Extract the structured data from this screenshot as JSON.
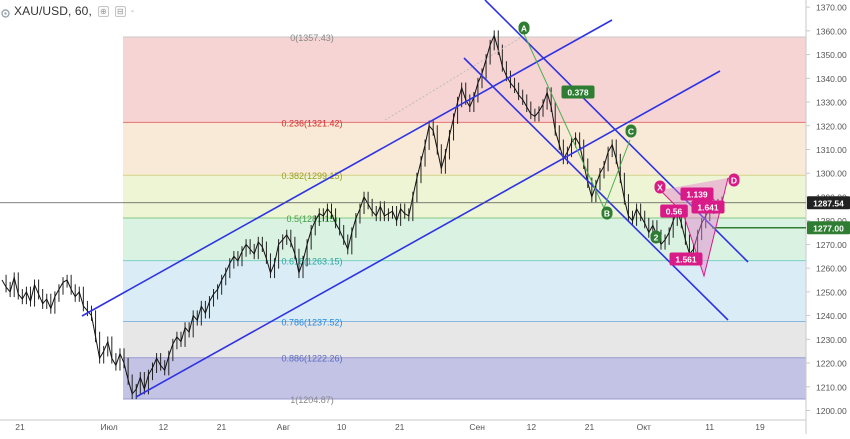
{
  "header": {
    "title": "XAU/USD, 60,",
    "button_a": "⊕",
    "button_b": "⊟",
    "separator": "-"
  },
  "chart_data": {
    "type": "line",
    "symbol": "XAU/USD",
    "interval": "60",
    "ylim": [
      1196,
      1373
    ],
    "y_ticks": [
      "1370.00",
      "1360.00",
      "1350.00",
      "1340.00",
      "1330.00",
      "1320.00",
      "1310.00",
      "1300.00",
      "1290.00",
      "1280.00",
      "1270.00",
      "1260.00",
      "1250.00",
      "1240.00",
      "1230.00",
      "1220.00",
      "1210.00",
      "1200.00"
    ],
    "y_tick_values": [
      1370,
      1360,
      1350,
      1340,
      1330,
      1320,
      1310,
      1300,
      1290,
      1280,
      1270,
      1260,
      1250,
      1240,
      1230,
      1220,
      1210,
      1200
    ],
    "x_ticks": [
      "21",
      "Июл",
      "12",
      "21",
      "Авг",
      "10",
      "21",
      "Сен",
      "12",
      "21",
      "Окт",
      "11",
      "19"
    ],
    "x_tick_index": [
      0,
      23,
      37,
      52,
      68,
      83,
      98,
      118,
      132,
      147,
      161,
      178,
      191
    ],
    "price_labels": [
      {
        "value": 1287.54,
        "text": "1287.54",
        "style": "dark"
      },
      {
        "value": 1277.0,
        "text": "1277.00",
        "style": "green"
      }
    ],
    "fibonacci": [
      {
        "level": "0",
        "price": 1357.43,
        "label": "0(1357.43)",
        "color": "#c9c9c9",
        "fill": "#f4c7c7",
        "text_color": "#888888"
      },
      {
        "level": "0.236",
        "price": 1321.42,
        "label": "0.236(1321.42)",
        "color": "#e57373",
        "fill": "#f6d9c0",
        "text_color": "#d32f2f"
      },
      {
        "level": "0.382",
        "price": 1299.15,
        "label": "0.382(1299.15)",
        "color": "#d4d48a",
        "fill": "#eef3c9",
        "text_color": "#9e9d24"
      },
      {
        "level": "0.5",
        "price": 1281.15,
        "label": "0.5(1281.15)",
        "color": "#86c986",
        "fill": "#d2f0d2",
        "text_color": "#43a047"
      },
      {
        "level": "0.618",
        "price": 1263.15,
        "label": "0.618(1263.15)",
        "color": "#7fcfc4",
        "fill": "#cdeef0",
        "text_color": "#26a69a"
      },
      {
        "level": "0.786",
        "price": 1237.52,
        "label": "0.786(1237.52)",
        "color": "#8ab8e0",
        "fill": "#dde9f5",
        "text_color": "#1e88e5"
      },
      {
        "level": "0.886",
        "price": 1222.26,
        "label": "0.886(1222.26)",
        "color": "#9a9acf",
        "fill": "#e4e4e4",
        "text_color": "#5c6bc0"
      },
      {
        "level": "1",
        "price": 1204.87,
        "label": "1(1204.87)",
        "color": "#9a9acf",
        "fill": "#b7b7de",
        "text_color": "#888888"
      }
    ],
    "fib_fills": [
      {
        "from": 1357.43,
        "to": 1321.42,
        "fill": "#f6cccc"
      },
      {
        "from": 1321.42,
        "to": 1299.15,
        "fill": "#f7e6cf"
      },
      {
        "from": 1299.15,
        "to": 1281.15,
        "fill": "#eaf3cc"
      },
      {
        "from": 1281.15,
        "to": 1263.15,
        "fill": "#d3f0dd"
      },
      {
        "from": 1263.15,
        "to": 1237.52,
        "fill": "#d3eaf4"
      },
      {
        "from": 1237.52,
        "to": 1222.26,
        "fill": "#e3e3e3"
      },
      {
        "from": 1222.26,
        "to": 1204.87,
        "fill": "#b9b9e0"
      }
    ],
    "price_series": {
      "x_start": 0,
      "x_step": 1,
      "close": [
        1255,
        1252,
        1250,
        1256,
        1249,
        1247,
        1250,
        1246,
        1253,
        1249,
        1245,
        1247,
        1243,
        1248,
        1251,
        1254,
        1255,
        1251,
        1248,
        1250,
        1244,
        1242,
        1240,
        1231,
        1222,
        1225,
        1229,
        1222,
        1219,
        1224,
        1220,
        1213,
        1207,
        1209,
        1214,
        1209,
        1215,
        1218,
        1222,
        1219,
        1217,
        1223,
        1228,
        1231,
        1229,
        1235,
        1233,
        1240,
        1238,
        1244,
        1241,
        1246,
        1249,
        1251,
        1255,
        1258,
        1262,
        1265,
        1263,
        1267,
        1270,
        1268,
        1266,
        1271,
        1269,
        1264,
        1258,
        1262,
        1270,
        1272,
        1274,
        1271,
        1266,
        1258,
        1263,
        1270,
        1276,
        1280,
        1283,
        1282,
        1285,
        1283,
        1279,
        1276,
        1272,
        1268,
        1275,
        1281,
        1285,
        1290,
        1287,
        1284,
        1282,
        1286,
        1282,
        1283,
        1284,
        1280,
        1285,
        1283,
        1282,
        1290,
        1298,
        1305,
        1312,
        1320,
        1318,
        1310,
        1302,
        1308,
        1316,
        1323,
        1330,
        1336,
        1331,
        1328,
        1332,
        1338,
        1342,
        1348,
        1354,
        1358,
        1352,
        1345,
        1341,
        1338,
        1336,
        1333,
        1331,
        1328,
        1325,
        1324,
        1326,
        1329,
        1334,
        1328,
        1318,
        1312,
        1306,
        1309,
        1313,
        1315,
        1312,
        1304,
        1296,
        1290,
        1295,
        1300,
        1303,
        1309,
        1312,
        1306,
        1298,
        1289,
        1282,
        1280,
        1285,
        1282,
        1279,
        1275,
        1278,
        1274,
        1270,
        1272,
        1275,
        1280,
        1284,
        1279,
        1272,
        1266,
        1268,
        1274,
        1279,
        1282,
        1285,
        1287,
        1286,
        1288
      ]
    },
    "pattern_labels": [
      "A",
      "B",
      "C",
      "D",
      "X",
      "0.378",
      "0.56",
      "1.139",
      "1.641",
      "1.561",
      "2"
    ]
  }
}
